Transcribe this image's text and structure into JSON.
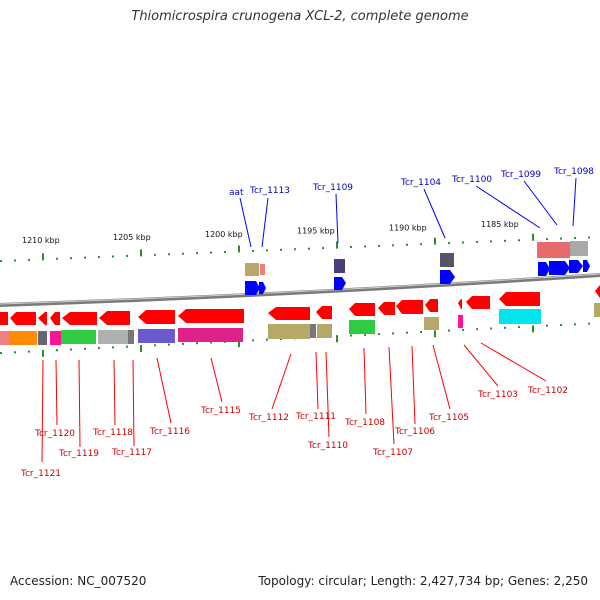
{
  "title": "Thiomicrospira crunogena XCL-2, complete genome",
  "accession": "Accession: NC_007520",
  "summary": "Topology: circular; Length: 2,427,734 bp; Genes: 2,250",
  "colors": {
    "backbone": "#8a8a8a",
    "gene": "#ff0000",
    "gene_alt": "#0000ff",
    "label_top": "#0000cc",
    "label_bottom": "#cc0000",
    "tick": "#2e8b2e"
  },
  "scale_labels": [
    "1210 kbp",
    "1205 kbp",
    "1200 kbp",
    "1195 kbp",
    "1190 kbp",
    "1185 kbp"
  ],
  "top_labels": [
    "aat",
    "Tcr_1113",
    "Tcr_1109",
    "Tcr_1104",
    "Tcr_1100",
    "Tcr_1099",
    "Tcr_1098"
  ],
  "bottom_labels": [
    "Tcr_1121",
    "Tcr_1120",
    "Tcr_1119",
    "Tcr_1118",
    "Tcr_1117",
    "Tcr_1116",
    "Tcr_1115",
    "Tcr_1112",
    "Tcr_1111",
    "Tcr_1110",
    "Tcr_1108",
    "Tcr_1107",
    "Tcr_1106",
    "Tcr_1105",
    "Tcr_1103",
    "Tcr_1102"
  ]
}
